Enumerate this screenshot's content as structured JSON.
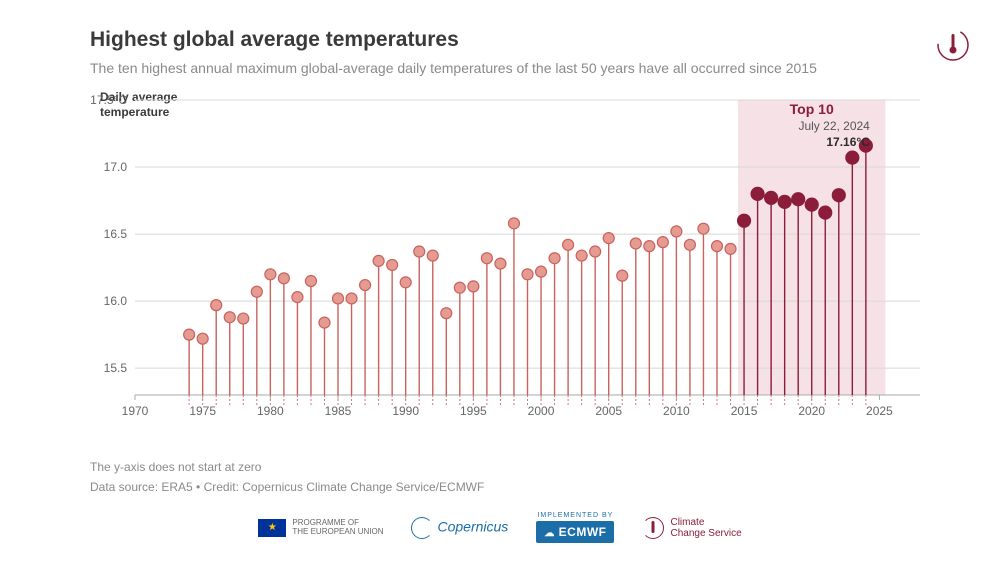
{
  "title": "Highest global average temperatures",
  "subtitle": "The ten highest annual maximum global-average daily temperatures of the last 50 years have all occurred since 2015",
  "y_axis_label": "Daily average\ntemperature",
  "footnote1": "The y-axis does not start at zero",
  "footnote2": "Data source: ERA5 • Credit: Copernicus Climate Change Service/ECMWF",
  "title_fontsize": 21,
  "subtitle_fontsize": 14,
  "y_axis_label_fontsize": 12,
  "footnote_fontsize": 12,
  "chart": {
    "type": "lollipop",
    "xlim": [
      1970,
      2028
    ],
    "ylim": [
      15.3,
      17.5
    ],
    "xticks": [
      1970,
      1975,
      1980,
      1985,
      1990,
      1995,
      2000,
      2005,
      2010,
      2015,
      2020,
      2025
    ],
    "yticks": [
      15.5,
      16.0,
      16.5,
      17.0,
      17.5
    ],
    "xtick_labels": [
      "1970",
      "1975",
      "1980",
      "1985",
      "1990",
      "1995",
      "2000",
      "2005",
      "2010",
      "2015",
      "2020",
      "2025"
    ],
    "ytick_labels": [
      "15.5",
      "16.0",
      "16.5",
      "17.0",
      "17.5°C"
    ],
    "grid_color": "#d8d8d8",
    "axis_color": "#aaaaaa",
    "tick_font_size": 12,
    "dashed_base_color": "#c77a7a",
    "highlight": {
      "label": "Top 10",
      "x_from": 2015,
      "x_to": 2025,
      "fill": "#f6e1e6",
      "label_color": "#8b1d3a",
      "label_fontsize": 14
    },
    "annotation": {
      "x": 2024,
      "lines": [
        "July 22, 2024",
        "17.16°C"
      ],
      "color": "#555555",
      "value_color": "#2b2b2b",
      "fontsize": 12
    },
    "series": {
      "normal_color": "#c9625c",
      "normal_fill": "#e59b92",
      "top10_color": "#8b1d3a",
      "marker_radius": 5.5,
      "marker_radius_top10": 6.5,
      "stem_width": 1.4,
      "data": [
        {
          "year": 1974,
          "value": 15.75
        },
        {
          "year": 1975,
          "value": 15.72
        },
        {
          "year": 1976,
          "value": 15.97
        },
        {
          "year": 1977,
          "value": 15.88
        },
        {
          "year": 1978,
          "value": 15.87
        },
        {
          "year": 1979,
          "value": 16.07
        },
        {
          "year": 1980,
          "value": 16.2
        },
        {
          "year": 1981,
          "value": 16.17
        },
        {
          "year": 1982,
          "value": 16.03
        },
        {
          "year": 1983,
          "value": 16.15
        },
        {
          "year": 1984,
          "value": 15.84
        },
        {
          "year": 1985,
          "value": 16.02
        },
        {
          "year": 1986,
          "value": 16.02
        },
        {
          "year": 1987,
          "value": 16.12
        },
        {
          "year": 1988,
          "value": 16.3
        },
        {
          "year": 1989,
          "value": 16.27
        },
        {
          "year": 1990,
          "value": 16.14
        },
        {
          "year": 1991,
          "value": 16.37
        },
        {
          "year": 1992,
          "value": 16.34
        },
        {
          "year": 1993,
          "value": 15.91
        },
        {
          "year": 1994,
          "value": 16.1
        },
        {
          "year": 1995,
          "value": 16.11
        },
        {
          "year": 1996,
          "value": 16.32
        },
        {
          "year": 1997,
          "value": 16.28
        },
        {
          "year": 1998,
          "value": 16.58
        },
        {
          "year": 1999,
          "value": 16.2
        },
        {
          "year": 2000,
          "value": 16.22
        },
        {
          "year": 2001,
          "value": 16.32
        },
        {
          "year": 2002,
          "value": 16.42
        },
        {
          "year": 2003,
          "value": 16.34
        },
        {
          "year": 2004,
          "value": 16.37
        },
        {
          "year": 2005,
          "value": 16.47
        },
        {
          "year": 2006,
          "value": 16.19
        },
        {
          "year": 2007,
          "value": 16.43
        },
        {
          "year": 2008,
          "value": 16.41
        },
        {
          "year": 2009,
          "value": 16.44
        },
        {
          "year": 2010,
          "value": 16.52
        },
        {
          "year": 2011,
          "value": 16.42
        },
        {
          "year": 2012,
          "value": 16.54
        },
        {
          "year": 2013,
          "value": 16.41
        },
        {
          "year": 2014,
          "value": 16.39
        },
        {
          "year": 2015,
          "value": 16.6,
          "top10": true
        },
        {
          "year": 2016,
          "value": 16.8,
          "top10": true
        },
        {
          "year": 2017,
          "value": 16.77,
          "top10": true
        },
        {
          "year": 2018,
          "value": 16.74,
          "top10": true
        },
        {
          "year": 2019,
          "value": 16.76,
          "top10": true
        },
        {
          "year": 2020,
          "value": 16.72,
          "top10": true
        },
        {
          "year": 2021,
          "value": 16.66,
          "top10": true
        },
        {
          "year": 2022,
          "value": 16.79,
          "top10": true
        },
        {
          "year": 2023,
          "value": 17.07,
          "top10": true
        },
        {
          "year": 2024,
          "value": 17.16,
          "top10": true
        }
      ]
    }
  },
  "logos": {
    "eu_text": "PROGRAMME OF\nTHE EUROPEAN UNION",
    "copernicus": "Copernicus",
    "ecmwf_pre": "IMPLEMENTED BY",
    "ecmwf": "ECMWF",
    "ccs": "Climate\nChange Service"
  }
}
